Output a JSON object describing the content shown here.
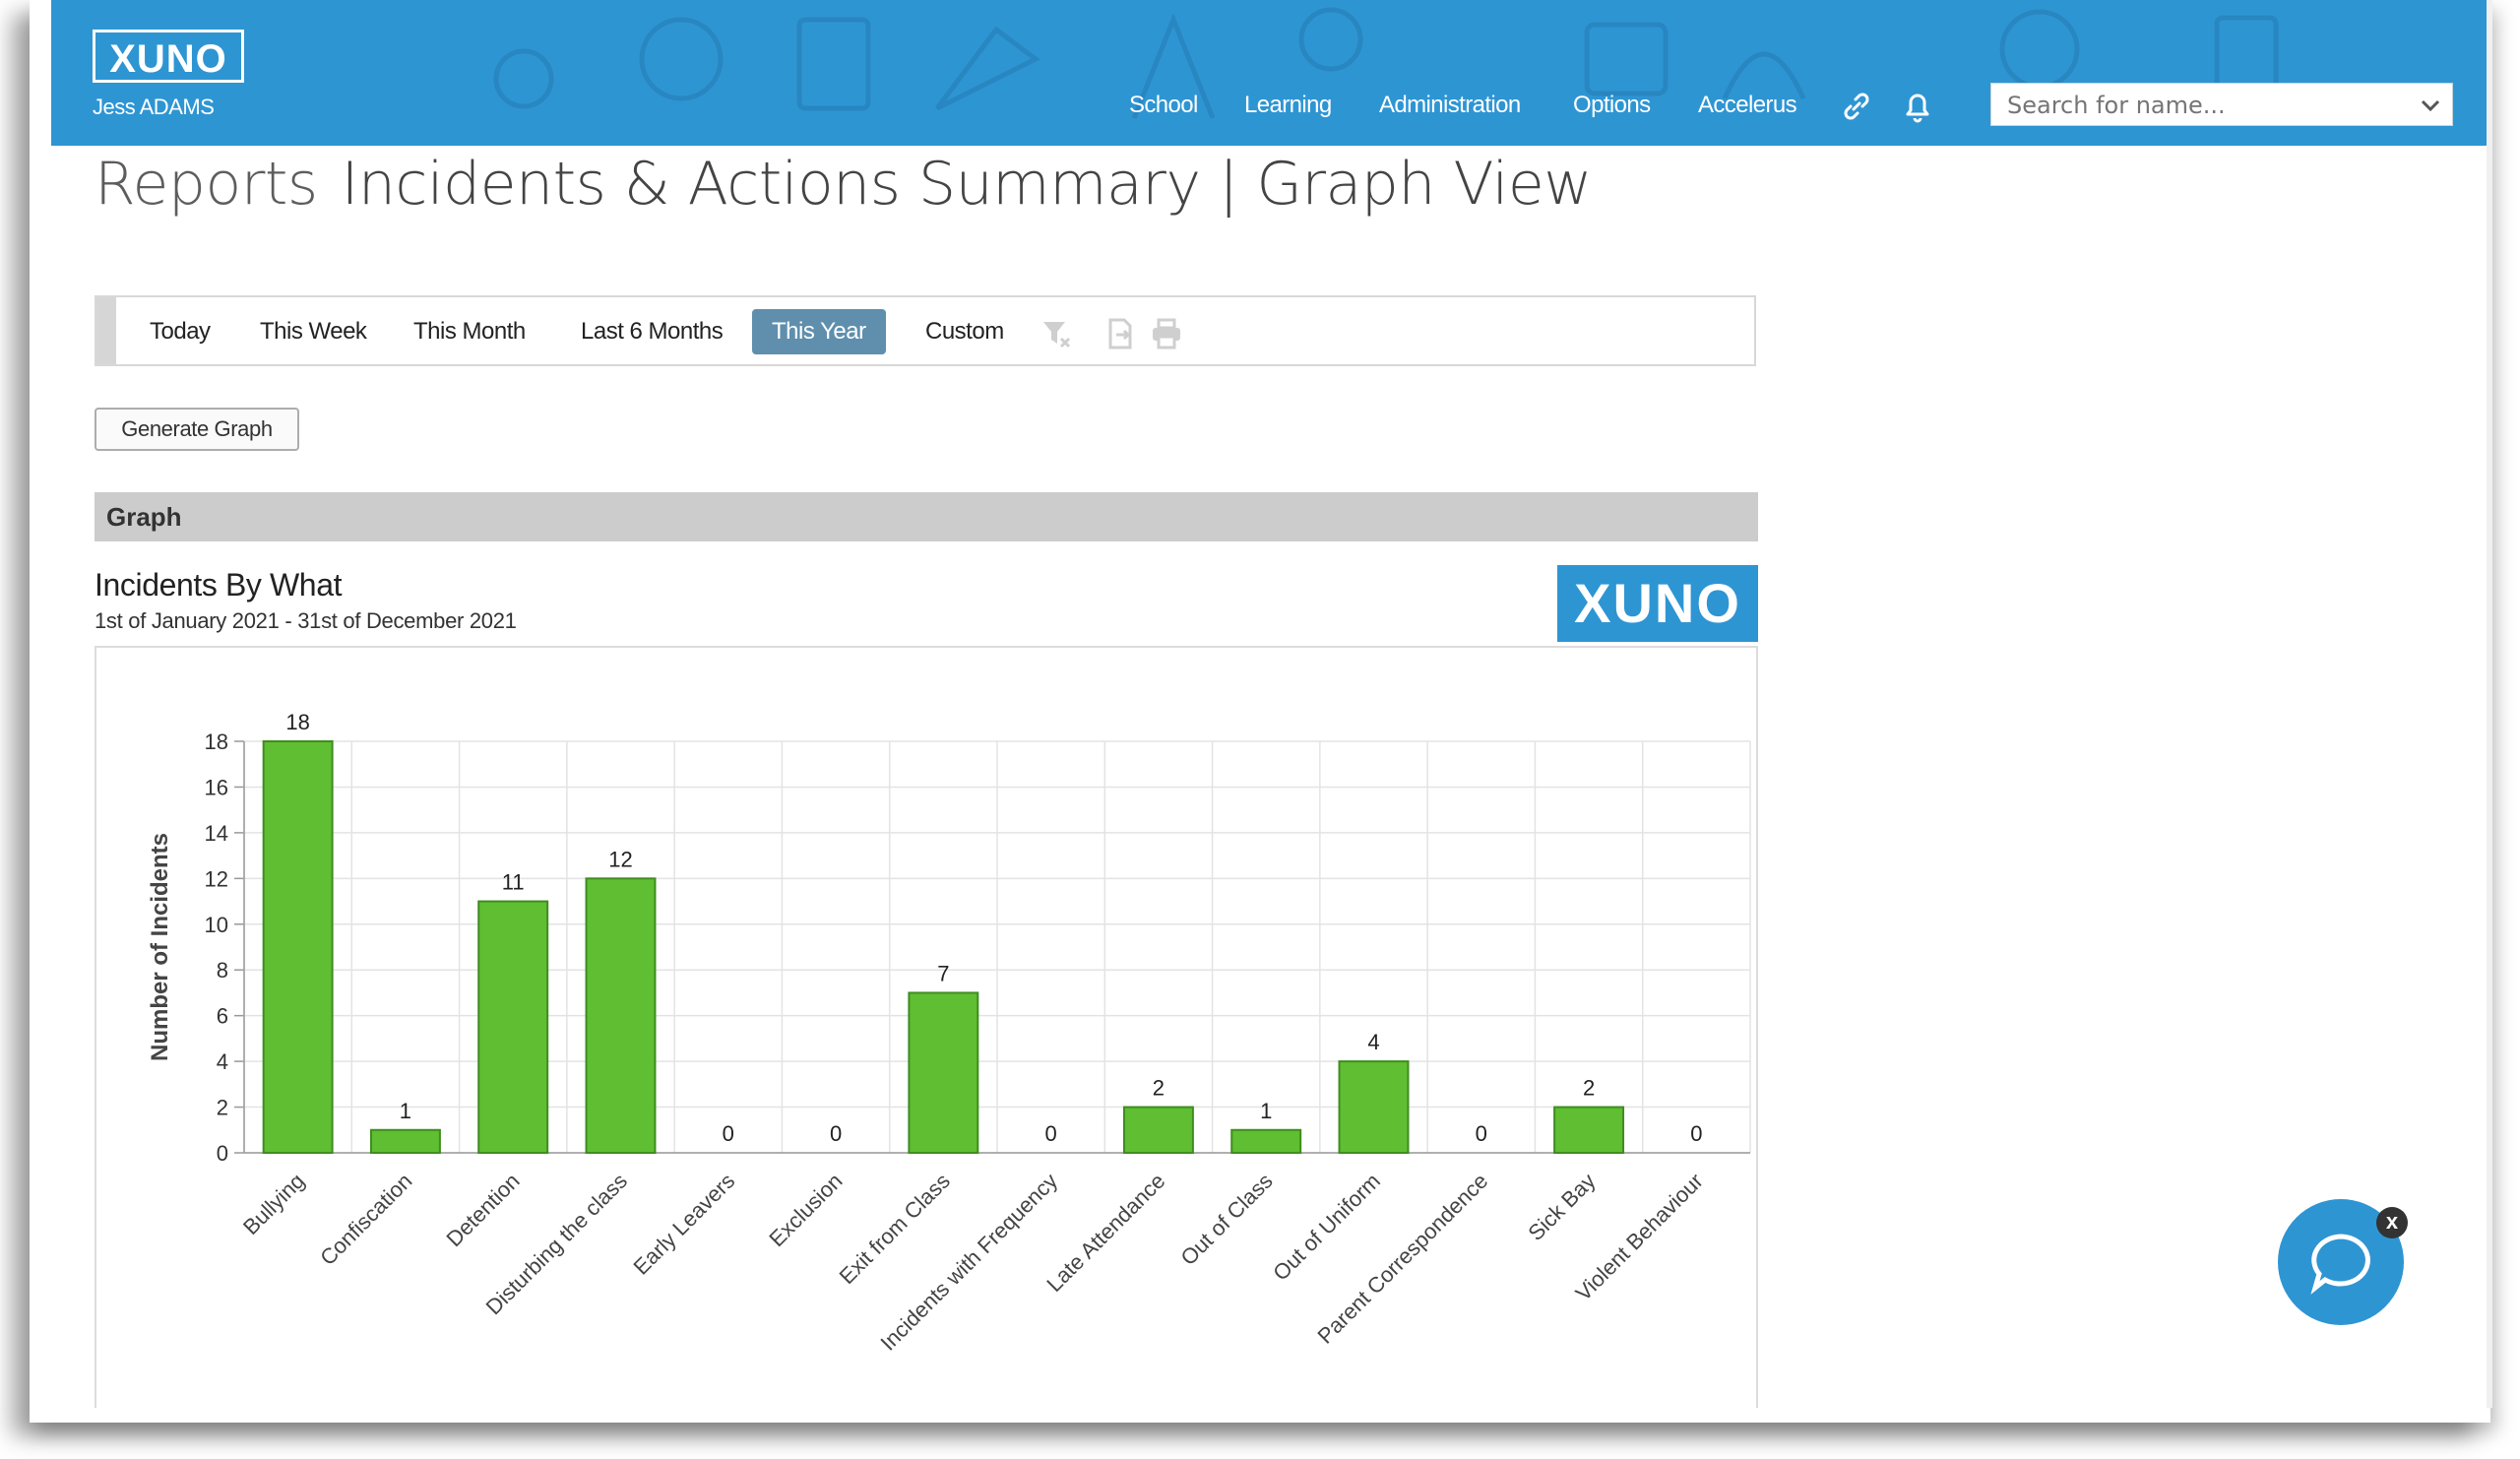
{
  "header": {
    "logo": "XUNO",
    "user": "Jess ADAMS",
    "nav": [
      "School",
      "Learning",
      "Administration",
      "Options",
      "Accelerus"
    ],
    "search_placeholder": "Search for name..."
  },
  "page": {
    "title": "Reports",
    "subtitle": "Incidents & Actions Summary | Graph View"
  },
  "filters": {
    "options": [
      "Today",
      "This Week",
      "This Month",
      "Last 6 Months",
      "This Year",
      "Custom"
    ],
    "active": "This Year"
  },
  "generate_label": "Generate Graph",
  "graph_section_label": "Graph",
  "chart_header": {
    "title": "Incidents By What",
    "date_range": "1st of January 2021 - 31st of December 2021",
    "badge": "XUNO"
  },
  "chart_data": {
    "type": "bar",
    "title": "Incidents By What",
    "ylabel": "Number of Incidents",
    "xlabel": "",
    "categories": [
      "Bullying",
      "Confiscation",
      "Detention",
      "Disturbing the class",
      "Early Leavers",
      "Exclusion",
      "Exit from Class",
      "Incidents with Frequency",
      "Late Attendance",
      "Out of Class",
      "Out of Uniform",
      "Parent Correspondence",
      "Sick Bay",
      "Violent Behaviour"
    ],
    "values": [
      18,
      1,
      11,
      12,
      0,
      0,
      7,
      0,
      2,
      1,
      4,
      0,
      2,
      0
    ],
    "yticks": [
      0,
      2,
      4,
      6,
      8,
      10,
      12,
      14,
      16,
      18
    ],
    "ylim": [
      0,
      18
    ],
    "bar_color": "#5fbe32",
    "grid": true
  },
  "chat": {
    "close_label": "x"
  },
  "colors": {
    "brand": "#2e95d3",
    "active_filter": "#5f8fad"
  }
}
